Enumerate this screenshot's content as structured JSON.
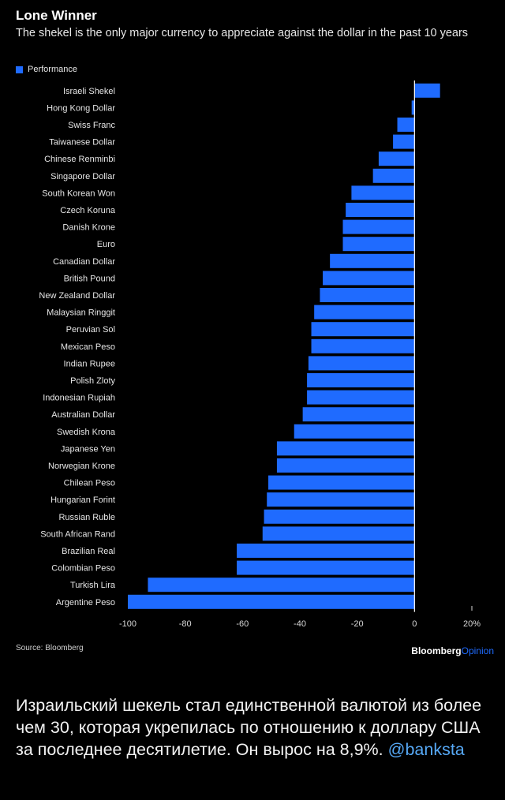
{
  "chart_data": {
    "type": "bar",
    "orientation": "horizontal",
    "title": "Lone Winner",
    "subtitle": "The shekel is the only major currency to appreciate against the dollar in the past 10 years",
    "legend": [
      "Performance"
    ],
    "categories": [
      "Israeli Shekel",
      "Hong Kong Dollar",
      "Swiss Franc",
      "Taiwanese Dollar",
      "Chinese Renminbi",
      "Singapore Dollar",
      "South Korean Won",
      "Czech Koruna",
      "Danish Krone",
      "Euro",
      "Canadian Dollar",
      "British Pound",
      "New Zealand Dollar",
      "Malaysian Ringgit",
      "Peruvian Sol",
      "Mexican Peso",
      "Indian Rupee",
      "Polish Zloty",
      "Indonesian Rupiah",
      "Australian Dollar",
      "Swedish Krona",
      "Japanese Yen",
      "Norwegian Krone",
      "Chilean Peso",
      "Hungarian Forint",
      "Russian Ruble",
      "South African Rand",
      "Brazilian Real",
      "Colombian Peso",
      "Turkish Lira",
      "Argentine Peso"
    ],
    "series": [
      {
        "name": "Performance",
        "values": [
          8.9,
          -1,
          -6,
          -7.5,
          -12.5,
          -14.5,
          -22,
          -24,
          -25,
          -25,
          -29.5,
          -32,
          -33,
          -35,
          -36,
          -36,
          -37,
          -37.5,
          -37.5,
          -39,
          -42,
          -48,
          -48,
          -51,
          -51.5,
          -52.5,
          -53,
          -62,
          -62,
          -93,
          -100
        ]
      }
    ],
    "xlim": [
      -100,
      20
    ],
    "x_ticks": [
      "-100",
      "-80",
      "-60",
      "-40",
      "-20",
      "0",
      "20%"
    ],
    "x_tick_values": [
      -100,
      -80,
      -60,
      -40,
      -20,
      0,
      20
    ],
    "bar_color": "#1f6bff"
  },
  "footer": {
    "source": "Source: Bloomberg",
    "brand": "Bloomberg",
    "brand_suffix": "Opinion"
  },
  "caption": {
    "text": "Израильский шекель стал единственной валютой из более чем 30, которая укрепилась по отношению к доллару США за последнее десятилетие. Он вырос на 8,9%.",
    "handle": "@banksta"
  }
}
